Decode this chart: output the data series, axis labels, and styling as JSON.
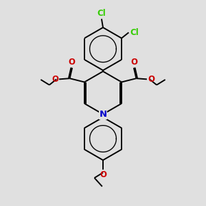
{
  "bg_color": "#e0e0e0",
  "bond_color": "#000000",
  "n_color": "#0000cc",
  "o_color": "#cc0000",
  "cl_color": "#33cc00",
  "lw": 1.4,
  "fs": 8.5,
  "dbo": 0.055,
  "fig_size": [
    3.0,
    3.0
  ],
  "dpi": 100,
  "xlim": [
    0,
    10
  ],
  "ylim": [
    0,
    10
  ]
}
